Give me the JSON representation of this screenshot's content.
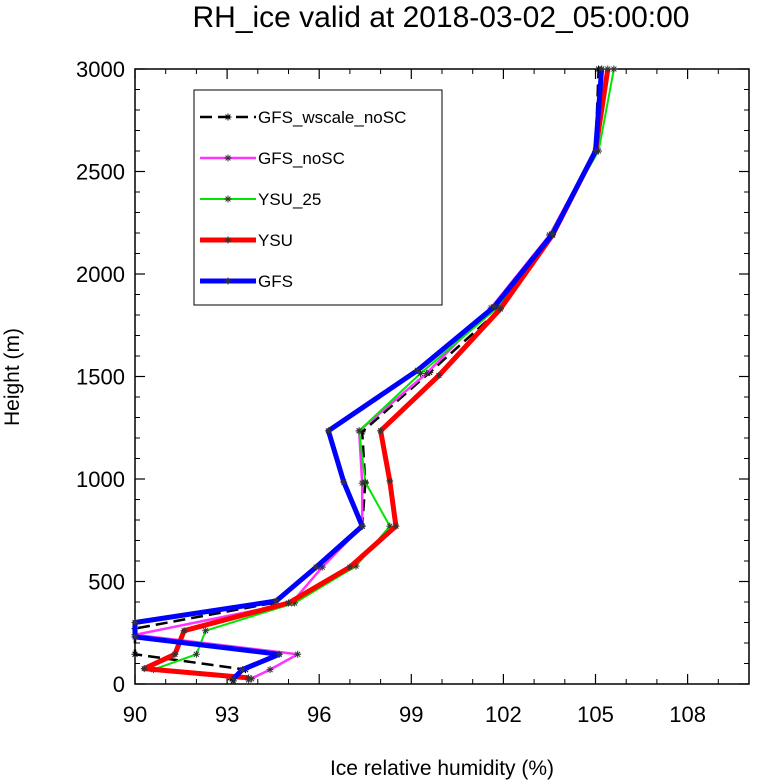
{
  "chart_data": {
    "type": "line",
    "title": "RH_ice valid at 2018-03-02_05:00:00",
    "xlabel": "Ice relative humidity (%)",
    "ylabel": "Height (m)",
    "xlim": [
      90,
      110
    ],
    "ylim": [
      0,
      3000
    ],
    "xticks": [
      90,
      93,
      96,
      99,
      102,
      105,
      108
    ],
    "yticks": [
      0,
      500,
      1000,
      1500,
      2000,
      2500,
      3000
    ],
    "xtick_labels": [
      "90",
      "93",
      "96",
      "99",
      "102",
      "105",
      "108"
    ],
    "ytick_labels": [
      "0",
      "500",
      "1000",
      "1500",
      "2000",
      "2500",
      "3000"
    ],
    "grid": false,
    "legend_position": "top-left",
    "series": [
      {
        "name": "GFS_wscale_noSC",
        "color": "#000000",
        "style": "dashed",
        "points": [
          [
            93.2,
            15
          ],
          [
            93.1,
            30
          ],
          [
            93.6,
            70
          ],
          [
            90,
            145
          ],
          [
            90,
            270
          ],
          [
            94.5,
            395
          ],
          [
            96,
            575
          ],
          [
            97.4,
            770
          ],
          [
            97.5,
            980
          ],
          [
            97.4,
            1230
          ],
          [
            99.6,
            1520
          ],
          [
            101.9,
            1830
          ],
          [
            103.6,
            2190
          ],
          [
            105,
            2600
          ],
          [
            105.1,
            3000
          ]
        ]
      },
      {
        "name": "GFS_noSC",
        "color": "#ff33ff",
        "style": "solid",
        "points": [
          [
            93.7,
            20
          ],
          [
            94.4,
            70
          ],
          [
            95.3,
            145
          ],
          [
            90,
            240
          ],
          [
            95.1,
            395
          ],
          [
            96.1,
            570
          ],
          [
            97.4,
            770
          ],
          [
            97.4,
            980
          ],
          [
            97.3,
            1235
          ],
          [
            99.5,
            1515
          ],
          [
            101.6,
            1835
          ],
          [
            103.5,
            2190
          ],
          [
            105,
            2600
          ],
          [
            105.2,
            3000
          ]
        ]
      },
      {
        "name": "YSU_25",
        "color": "#00e600",
        "style": "solid",
        "points": [
          [
            93.8,
            25
          ],
          [
            90.6,
            70
          ],
          [
            92,
            145
          ],
          [
            92.3,
            260
          ],
          [
            95.2,
            395
          ],
          [
            97.2,
            575
          ],
          [
            98.3,
            770
          ],
          [
            97.5,
            985
          ],
          [
            97.3,
            1235
          ],
          [
            99.3,
            1515
          ],
          [
            101.8,
            1835
          ],
          [
            103.5,
            2190
          ],
          [
            105.1,
            2600
          ],
          [
            105.6,
            3000
          ]
        ]
      },
      {
        "name": "YSU",
        "color": "#ff0000",
        "style": "solid",
        "points": [
          [
            93.7,
            30
          ],
          [
            90.3,
            75
          ],
          [
            91.3,
            145
          ],
          [
            91.6,
            260
          ],
          [
            95,
            395
          ],
          [
            97,
            570
          ],
          [
            98.5,
            770
          ],
          [
            98.3,
            990
          ],
          [
            98,
            1235
          ],
          [
            99.9,
            1505
          ],
          [
            101.9,
            1830
          ],
          [
            103.6,
            2190
          ],
          [
            105,
            2600
          ],
          [
            105.4,
            3000
          ]
        ]
      },
      {
        "name": "GFS",
        "color": "#0000ff",
        "style": "solid",
        "points": [
          [
            93.2,
            25
          ],
          [
            93.5,
            70
          ],
          [
            94.7,
            145
          ],
          [
            90,
            230
          ],
          [
            90,
            300
          ],
          [
            94.6,
            405
          ],
          [
            95.9,
            570
          ],
          [
            97.4,
            770
          ],
          [
            96.8,
            985
          ],
          [
            96.3,
            1235
          ],
          [
            99.2,
            1530
          ],
          [
            101.7,
            1840
          ],
          [
            103.6,
            2195
          ],
          [
            105,
            2600
          ],
          [
            105.2,
            3000
          ]
        ]
      }
    ]
  }
}
